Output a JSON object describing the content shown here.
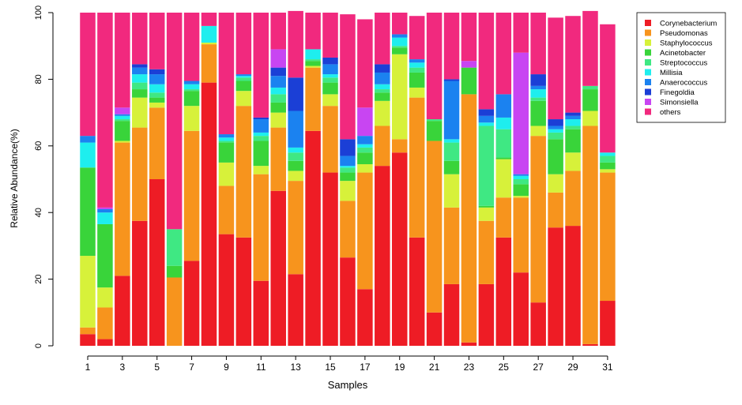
{
  "chart_data": {
    "type": "bar",
    "stacked": true,
    "title": "",
    "xlabel": "Samples",
    "ylabel": "Relative Abundance(%)",
    "ylim": [
      0,
      100
    ],
    "yticks": [
      "0",
      "20",
      "40",
      "60",
      "80",
      "100"
    ],
    "categories": [
      "1",
      "2",
      "3",
      "4",
      "5",
      "6",
      "7",
      "8",
      "9",
      "10",
      "11",
      "12",
      "13",
      "14",
      "15",
      "16",
      "17",
      "18",
      "19",
      "20",
      "21",
      "22",
      "23",
      "24",
      "25",
      "26",
      "27",
      "28",
      "29",
      "30",
      "31"
    ],
    "tick_labels": [
      "1",
      "3",
      "5",
      "7",
      "9",
      "11",
      "13",
      "15",
      "17",
      "19",
      "21",
      "23",
      "25",
      "27",
      "29",
      "31"
    ],
    "legend_position": "top-right",
    "series": [
      {
        "name": "Corynebacterium",
        "color": "#ee1c25",
        "values": [
          3.5,
          2,
          21,
          37.5,
          50,
          0,
          25.5,
          79,
          33.5,
          32.5,
          19.5,
          46.5,
          21.5,
          64.5,
          52,
          26.5,
          17,
          54,
          58,
          32.5,
          10,
          18.5,
          1,
          18.5,
          32.5,
          22,
          13,
          35.5,
          36,
          0.5,
          13.5
        ]
      },
      {
        "name": "Pseudomonas",
        "color": "#f7941d",
        "values": [
          2,
          9.5,
          40,
          28,
          21.5,
          20.5,
          39,
          11.5,
          14.5,
          39.5,
          32,
          19,
          28,
          19,
          20,
          17,
          35,
          12,
          4,
          42,
          51.5,
          23,
          74.5,
          19,
          12,
          22.5,
          50,
          10.5,
          16.5,
          65.5,
          38.5
        ]
      },
      {
        "name": "Staphylococcus",
        "color": "#d7f13a",
        "values": [
          21.5,
          6,
          0.5,
          9,
          1.5,
          0,
          7.5,
          0.5,
          7,
          4.5,
          2.5,
          4.5,
          3,
          0.5,
          3.5,
          6,
          2.5,
          7.5,
          25.5,
          3,
          0,
          10,
          0,
          4,
          11.5,
          0.5,
          3,
          5.5,
          5.5,
          4.5,
          1
        ]
      },
      {
        "name": "Acinetobacter",
        "color": "#39d43a",
        "values": [
          26.5,
          19,
          6,
          2.5,
          1.5,
          3.5,
          4.5,
          0,
          6,
          3,
          7.5,
          3,
          3,
          1.5,
          3.5,
          2.5,
          3.5,
          2.5,
          2,
          4.5,
          6,
          4,
          8,
          0.5,
          0.5,
          3.5,
          7.5,
          10.5,
          7,
          6.5,
          2
        ]
      },
      {
        "name": "Streptococcus",
        "color": "#3fe883",
        "values": [
          0,
          0,
          0.5,
          2,
          1.5,
          11,
          0.5,
          0,
          0.5,
          1,
          1.5,
          2.5,
          2.5,
          0.5,
          1.5,
          1.5,
          1.5,
          1,
          0.5,
          1.5,
          0.5,
          5.5,
          0,
          24,
          8.5,
          1.5,
          1,
          2,
          1,
          1,
          2
        ]
      },
      {
        "name": "Millisia",
        "color": "#1eeeee",
        "values": [
          7.5,
          3.5,
          1,
          2.5,
          2.5,
          0,
          1.5,
          5,
          1,
          0.5,
          1,
          2,
          1.5,
          3,
          1,
          0.5,
          1,
          1.5,
          2.5,
          1.5,
          0,
          1,
          0,
          1,
          3.5,
          1,
          2.5,
          1,
          2,
          0,
          1
        ]
      },
      {
        "name": "Anaerococcus",
        "color": "#1b82f0",
        "values": [
          2,
          1,
          0.5,
          2,
          3,
          0,
          1,
          0,
          1,
          0.5,
          4,
          3.5,
          11,
          0,
          3,
          3,
          2.5,
          3.5,
          1,
          1,
          0,
          17.5,
          0,
          2,
          7,
          0.5,
          1,
          1,
          1,
          0,
          0
        ]
      },
      {
        "name": "Finegoldia",
        "color": "#1b3fd6",
        "values": [
          0,
          0,
          0,
          1,
          1.5,
          0,
          0,
          0,
          0,
          0,
          0.5,
          2.5,
          10,
          0,
          2,
          5,
          0,
          2.5,
          0,
          0,
          0,
          0.5,
          0,
          2,
          0,
          0,
          3.5,
          2,
          1,
          0,
          0
        ]
      },
      {
        "name": "Simonsiella",
        "color": "#c845f2",
        "values": [
          0,
          0.5,
          2,
          0,
          0,
          0,
          0,
          0,
          0,
          0,
          0,
          5.5,
          0,
          0,
          0,
          0,
          8.5,
          0,
          0,
          0,
          0,
          0,
          2,
          0,
          0,
          36.5,
          0,
          0,
          0,
          0,
          0
        ]
      },
      {
        "name": "others",
        "color": "#f1297e",
        "values": [
          37,
          58.5,
          28.5,
          15.5,
          17,
          65,
          20.5,
          4,
          36.5,
          18.5,
          31.5,
          11,
          20,
          11,
          13.5,
          37.5,
          26.5,
          15.5,
          6.5,
          13,
          32,
          20,
          14.5,
          29,
          24.5,
          12,
          18.5,
          30.5,
          29,
          22.5,
          38.5
        ]
      }
    ]
  }
}
